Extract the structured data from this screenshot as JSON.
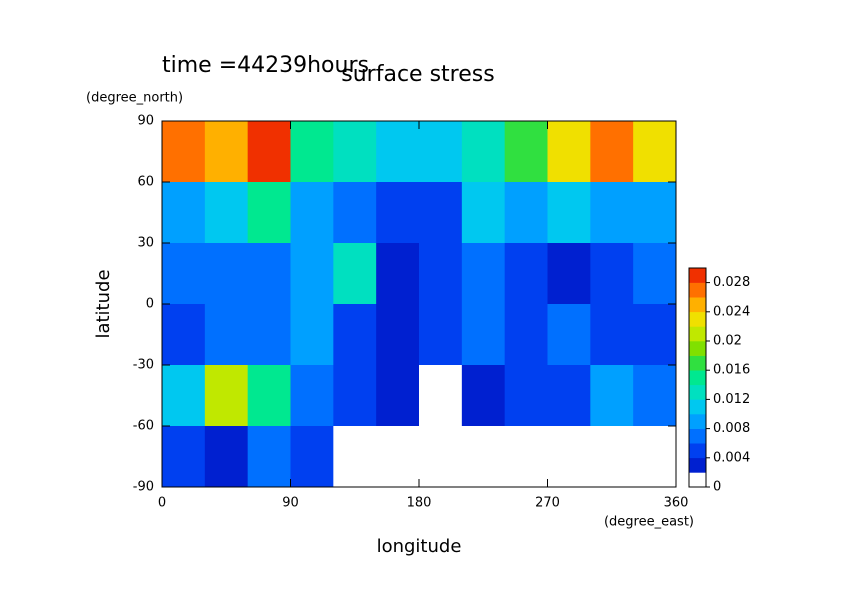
{
  "chart_data": {
    "type": "contour",
    "title": "surface stress",
    "subtitle": "time =44239hours",
    "x_label": "longitude",
    "x_units": "(degree_east)",
    "y_label": "latitude",
    "y_units": "(degree_north)",
    "x": [
      15,
      45,
      75,
      105,
      135,
      165,
      195,
      225,
      255,
      285,
      315,
      345
    ],
    "y": [
      75,
      45,
      15,
      -15,
      -45,
      -75
    ],
    "z": [
      [
        0.026,
        0.024,
        0.028,
        0.014,
        0.012,
        0.01,
        0.01,
        0.012,
        0.016,
        0.022,
        0.026,
        0.022
      ],
      [
        0.008,
        0.01,
        0.014,
        0.008,
        0.006,
        0.004,
        0.004,
        0.01,
        0.008,
        0.01,
        0.008,
        0.008
      ],
      [
        0.006,
        0.006,
        0.006,
        0.008,
        0.012,
        0.002,
        0.004,
        0.006,
        0.004,
        0.002,
        0.004,
        0.006
      ],
      [
        0.004,
        0.006,
        0.006,
        0.008,
        0.004,
        0.002,
        0.004,
        0.006,
        0.004,
        0.006,
        0.004,
        0.004
      ],
      [
        0.01,
        0.02,
        0.014,
        0.006,
        0.004,
        0.002,
        0.001,
        0.002,
        0.004,
        0.004,
        0.008,
        0.006
      ],
      [
        0.004,
        0.002,
        0.006,
        0.004,
        0,
        0,
        0,
        0,
        0,
        0,
        0,
        0
      ]
    ],
    "xlim": [
      0,
      360
    ],
    "xticks": [
      0,
      90,
      180,
      270,
      360
    ],
    "ylim": [
      -90,
      90
    ],
    "yticks": [
      -90,
      -60,
      -30,
      0,
      30,
      60,
      90
    ],
    "colorbar": {
      "lim": [
        0,
        0.03
      ],
      "ticks": [
        0,
        0.004,
        0.008,
        0.012,
        0.016,
        0.02,
        0.024,
        0.028
      ],
      "colors": [
        "#ffffff",
        "#0020d0",
        "#0040f0",
        "#0070ff",
        "#00a0ff",
        "#00c8f0",
        "#00e0c0",
        "#00e890",
        "#30e040",
        "#80e000",
        "#c0e800",
        "#f0e000",
        "#ffb000",
        "#ff7000",
        "#f03000"
      ]
    }
  }
}
